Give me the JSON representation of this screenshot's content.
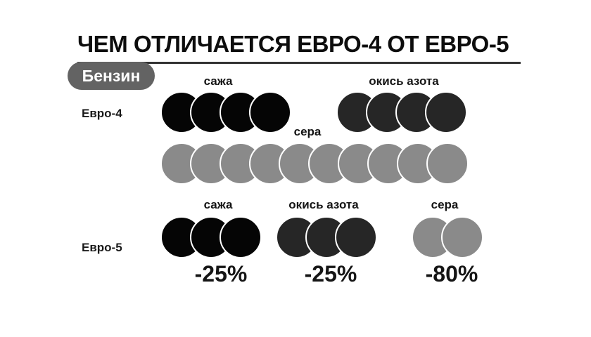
{
  "title": "ЧЕМ ОТЛИЧАЕТСЯ ЕВРО-4 ОТ ЕВРО-5",
  "badge": "Бензин",
  "colors": {
    "soot": "#050505",
    "nitrogen_oxide": "#262626",
    "sulfur": "#8a8a8a",
    "badge": "#636363"
  },
  "euro4": {
    "label": "Евро-4",
    "soot": {
      "label": "сажа",
      "count": 4
    },
    "nitrogen_oxide": {
      "label": "окись азота",
      "count": 4
    },
    "sulfur": {
      "label": "сера",
      "count": 10
    }
  },
  "euro5": {
    "label": "Евро-5",
    "soot": {
      "label": "сажа",
      "count": 3,
      "change": "-25%"
    },
    "nitrogen_oxide": {
      "label": "окись азота",
      "count": 3,
      "change": "-25%"
    },
    "sulfur": {
      "label": "сера",
      "count": 2,
      "change": "-80%"
    }
  }
}
